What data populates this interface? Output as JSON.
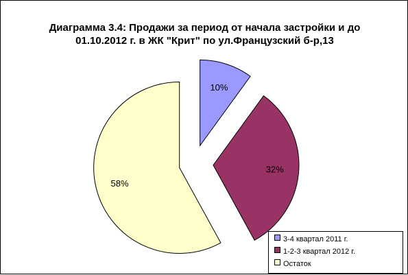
{
  "chart_data": {
    "type": "pie",
    "title_line1": "Диаграмма 3.4: Продажи за период от начала застройки и до",
    "title_line2": "01.10.2012 г. в ЖК \"Крит\" по ул.Французский б-р,13",
    "series": [
      {
        "name": "3-4 квартал 2011 г.",
        "value": 10,
        "label": "10%",
        "color": "#9999ff"
      },
      {
        "name": "1-2-3 квартал 2012 г.",
        "value": 32,
        "label": "32%",
        "color": "#993366"
      },
      {
        "name": "Остаток",
        "value": 58,
        "label": "58%",
        "color": "#ffffcc"
      }
    ],
    "legend_position": "bottom-right",
    "exploded": true
  }
}
